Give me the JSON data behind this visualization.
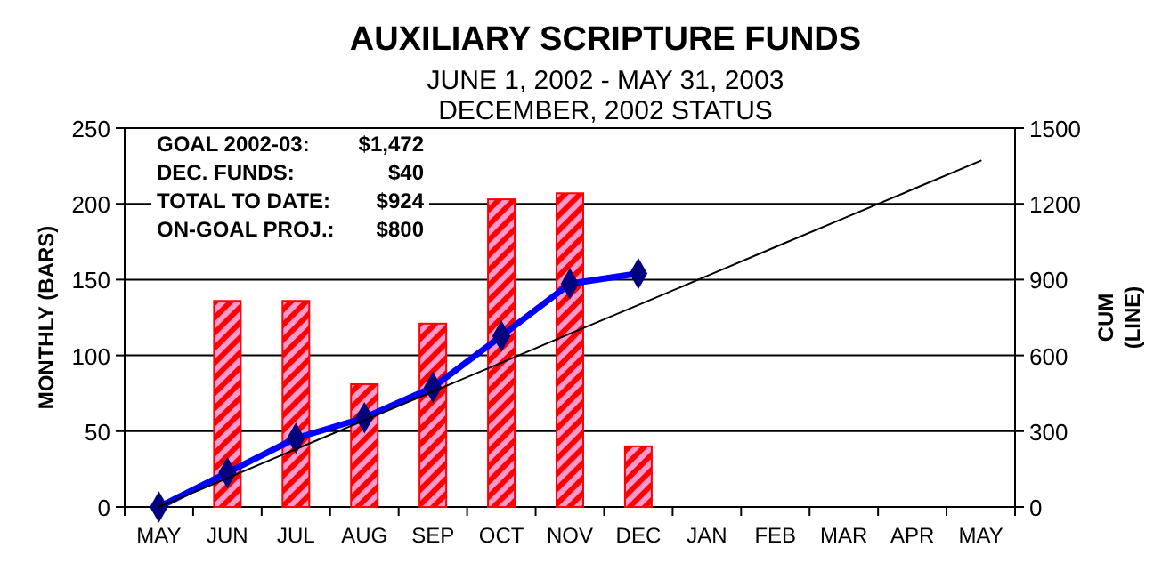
{
  "chart_data": {
    "type": "bar",
    "title": "AUXILIARY SCRIPTURE FUNDS",
    "subtitle": "JUNE 1, 2002 - MAY 31, 2003\nDECEMBER, 2002 STATUS",
    "ylabel": "MONTHLY (BARS)",
    "y2label": "CUM (LINE)",
    "categories": [
      "MAY",
      "JUN",
      "JUL",
      "AUG",
      "SEP",
      "OCT",
      "NOV",
      "DEC",
      "JAN",
      "FEB",
      "MAR",
      "APR",
      "MAY"
    ],
    "series": [
      {
        "color": "#ff0000",
        "values": [
          null,
          136,
          136,
          81,
          121,
          203,
          207,
          40,
          null,
          null,
          null,
          null,
          null
        ]
      },
      {
        "type": "line",
        "axis": "y2",
        "color": "#0000ff",
        "marker": "diamond",
        "values": [
          0,
          136,
          272,
          353,
          474,
          677,
          884,
          924,
          null,
          null,
          null,
          null,
          null
        ]
      },
      {
        "type": "line",
        "axis": "y2",
        "color": "#000000",
        "marker": "none",
        "values": [
          0,
          114,
          229,
          343,
          457,
          571,
          686,
          800,
          914,
          1029,
          1143,
          1257,
          1371
        ]
      }
    ],
    "ylim": [
      0,
      250
    ],
    "yticks": [
      0,
      50,
      100,
      150,
      200,
      250
    ],
    "y2lim": [
      0,
      1500
    ],
    "y2ticks": [
      0,
      300,
      600,
      900,
      1200,
      1500
    ],
    "grid": "y",
    "annotations": [
      "GOAL 2002-03: $1,472",
      "DEC. FUNDS: $40",
      "TOTAL TO DATE: $924",
      "ON-GOAL PROJ.: $800"
    ]
  }
}
